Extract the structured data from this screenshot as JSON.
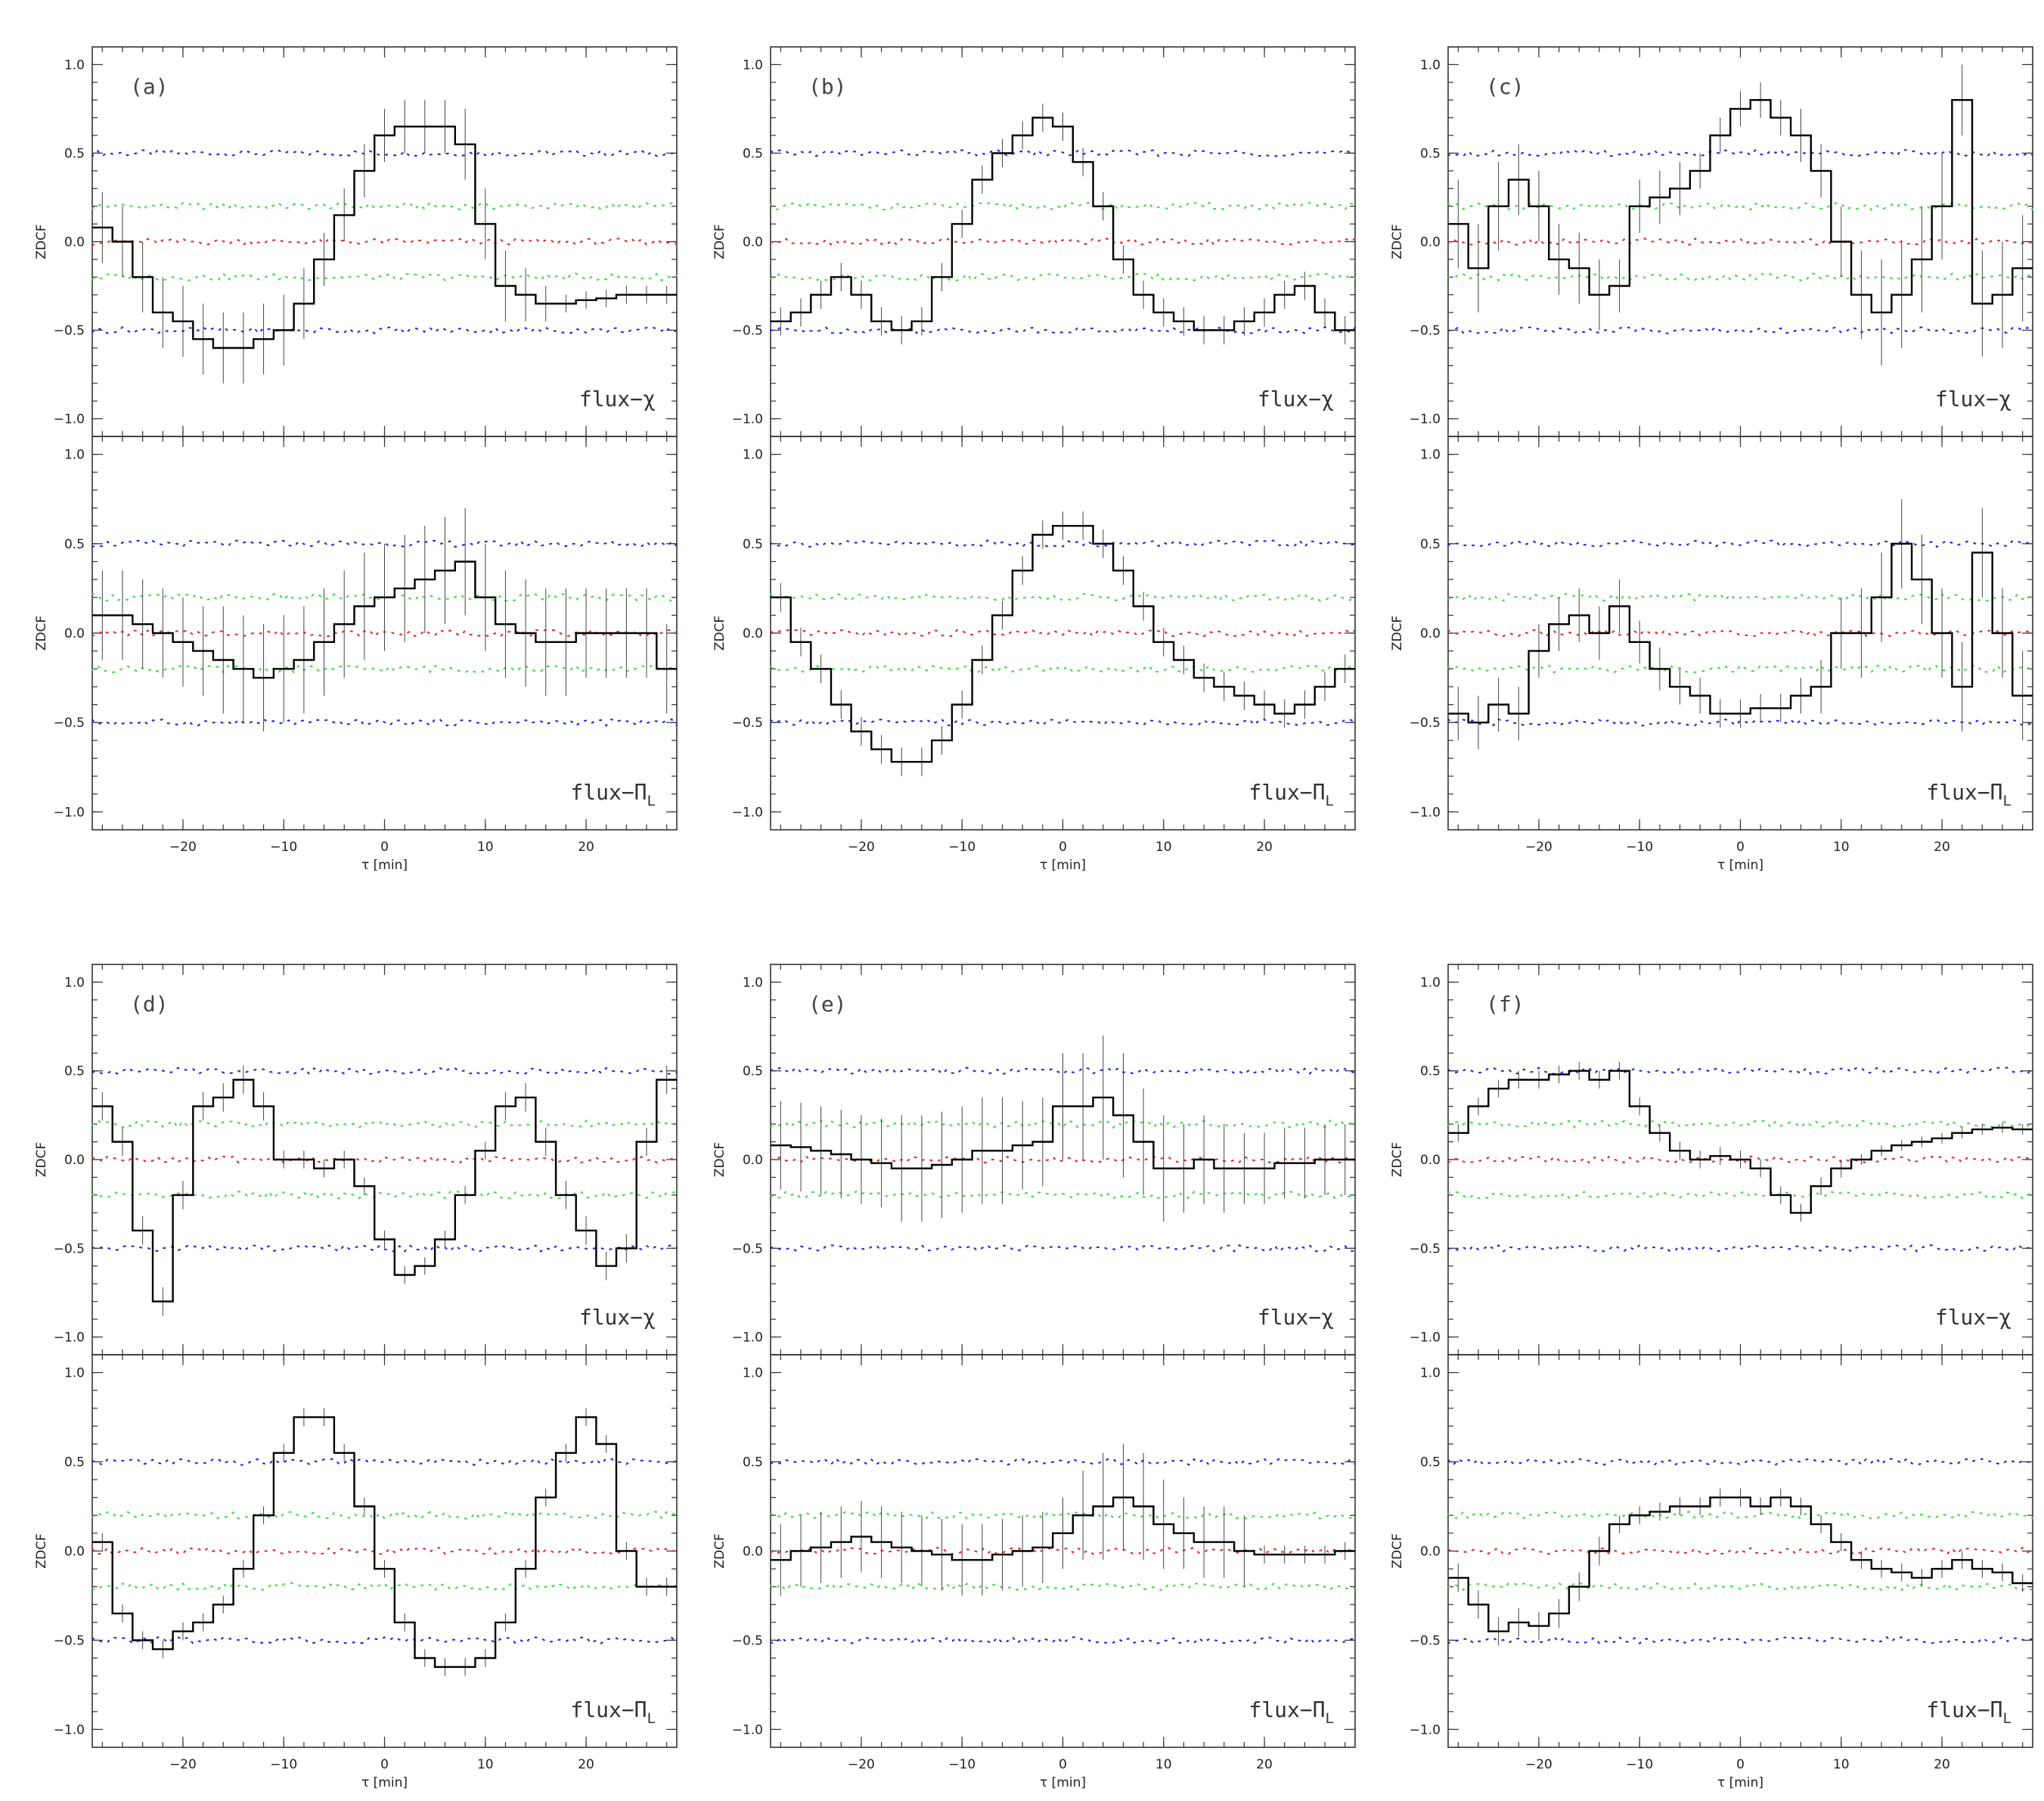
{
  "colors": {
    "line": "#000000",
    "err": "#444444",
    "zero": "#e03030",
    "sig1": "#44dd44",
    "sig2": "#2b2bd8"
  },
  "common": {
    "ylabel": "ZDCF",
    "xlabel": "τ [min]",
    "xlim": [
      -29,
      29
    ],
    "ylim": [
      -1.1,
      1.1
    ],
    "xticks": [
      -20,
      -10,
      0,
      10,
      20
    ],
    "yticks": [
      -1.0,
      -0.5,
      0.0,
      0.5,
      1.0
    ],
    "ytick_labels": [
      "−1.0",
      "−0.5",
      "0.0",
      "0.5",
      "1.0"
    ],
    "xtick_labels": [
      "−20",
      "−10",
      "0",
      "10",
      "20"
    ],
    "ref_levels": {
      "zero": 0.0,
      "sig1": [
        0.2,
        -0.2
      ],
      "sig2": [
        0.5,
        -0.5
      ]
    }
  },
  "chart_data": [
    {
      "type": "line",
      "panel": "(a)",
      "top": {
        "label": "flux−χ",
        "x": [
          -28,
          -26,
          -24,
          -22,
          -20,
          -18,
          -16,
          -14,
          -12,
          -10,
          -8,
          -6,
          -4,
          -2,
          0,
          2,
          4,
          6,
          8,
          10,
          12,
          14,
          16,
          18,
          20,
          22,
          24,
          26,
          28
        ],
        "y": [
          0.08,
          0.0,
          -0.2,
          -0.4,
          -0.45,
          -0.55,
          -0.6,
          -0.6,
          -0.55,
          -0.5,
          -0.35,
          -0.1,
          0.15,
          0.4,
          0.6,
          0.65,
          0.65,
          0.65,
          0.55,
          0.1,
          -0.25,
          -0.3,
          -0.35,
          -0.35,
          -0.33,
          -0.32,
          -0.3,
          -0.3,
          -0.3
        ],
        "err": [
          0.2,
          0.2,
          0.2,
          0.2,
          0.2,
          0.2,
          0.2,
          0.2,
          0.2,
          0.2,
          0.2,
          0.15,
          0.15,
          0.15,
          0.15,
          0.15,
          0.15,
          0.15,
          0.2,
          0.2,
          0.2,
          0.15,
          0.1,
          0.05,
          0.05,
          0.05,
          0.05,
          0.05,
          0.05
        ]
      },
      "bottom": {
        "label": "flux−Π",
        "x": [
          -28,
          -26,
          -24,
          -22,
          -20,
          -18,
          -16,
          -14,
          -12,
          -10,
          -8,
          -6,
          -4,
          -2,
          0,
          2,
          4,
          6,
          8,
          10,
          12,
          14,
          16,
          18,
          20,
          22,
          24,
          26,
          28
        ],
        "y": [
          0.1,
          0.1,
          0.05,
          0.0,
          -0.05,
          -0.1,
          -0.15,
          -0.2,
          -0.25,
          -0.2,
          -0.15,
          -0.05,
          0.05,
          0.15,
          0.2,
          0.25,
          0.3,
          0.35,
          0.4,
          0.2,
          0.05,
          0.0,
          -0.05,
          -0.05,
          0.0,
          0.0,
          0.0,
          0.0,
          -0.2
        ],
        "err": [
          0.25,
          0.25,
          0.25,
          0.25,
          0.25,
          0.25,
          0.3,
          0.3,
          0.3,
          0.3,
          0.3,
          0.3,
          0.3,
          0.3,
          0.3,
          0.3,
          0.3,
          0.3,
          0.3,
          0.3,
          0.3,
          0.3,
          0.3,
          0.3,
          0.25,
          0.25,
          0.25,
          0.25,
          0.25
        ]
      }
    },
    {
      "type": "line",
      "panel": "(b)",
      "top": {
        "label": "flux−χ",
        "x": [
          -28,
          -26,
          -24,
          -22,
          -20,
          -18,
          -16,
          -14,
          -12,
          -10,
          -8,
          -6,
          -4,
          -2,
          0,
          2,
          4,
          6,
          8,
          10,
          12,
          14,
          16,
          18,
          20,
          22,
          24,
          26,
          28
        ],
        "y": [
          -0.45,
          -0.4,
          -0.3,
          -0.2,
          -0.3,
          -0.45,
          -0.5,
          -0.45,
          -0.2,
          0.1,
          0.35,
          0.5,
          0.6,
          0.7,
          0.65,
          0.45,
          0.2,
          -0.1,
          -0.3,
          -0.4,
          -0.45,
          -0.5,
          -0.5,
          -0.45,
          -0.4,
          -0.3,
          -0.25,
          -0.4,
          -0.5
        ],
        "err": [
          0.08,
          0.08,
          0.08,
          0.08,
          0.08,
          0.08,
          0.08,
          0.08,
          0.08,
          0.08,
          0.08,
          0.08,
          0.08,
          0.08,
          0.08,
          0.08,
          0.08,
          0.08,
          0.08,
          0.08,
          0.08,
          0.08,
          0.08,
          0.08,
          0.08,
          0.08,
          0.08,
          0.08,
          0.08
        ]
      },
      "bottom": {
        "label": "flux−Π",
        "x": [
          -28,
          -26,
          -24,
          -22,
          -20,
          -18,
          -16,
          -14,
          -12,
          -10,
          -8,
          -6,
          -4,
          -2,
          0,
          2,
          4,
          6,
          8,
          10,
          12,
          14,
          16,
          18,
          20,
          22,
          24,
          26,
          28
        ],
        "y": [
          0.2,
          -0.05,
          -0.2,
          -0.4,
          -0.55,
          -0.65,
          -0.72,
          -0.72,
          -0.6,
          -0.4,
          -0.15,
          0.1,
          0.35,
          0.55,
          0.6,
          0.6,
          0.5,
          0.35,
          0.15,
          -0.05,
          -0.15,
          -0.25,
          -0.3,
          -0.35,
          -0.4,
          -0.45,
          -0.4,
          -0.3,
          -0.2
        ],
        "err": [
          0.08,
          0.08,
          0.08,
          0.08,
          0.08,
          0.08,
          0.08,
          0.08,
          0.08,
          0.08,
          0.08,
          0.08,
          0.08,
          0.08,
          0.08,
          0.08,
          0.08,
          0.08,
          0.08,
          0.08,
          0.08,
          0.08,
          0.08,
          0.08,
          0.08,
          0.08,
          0.08,
          0.08,
          0.08
        ]
      }
    },
    {
      "type": "line",
      "panel": "(c)",
      "top": {
        "label": "flux−χ",
        "x": [
          -28,
          -26,
          -24,
          -22,
          -20,
          -18,
          -16,
          -14,
          -12,
          -10,
          -8,
          -6,
          -4,
          -2,
          0,
          2,
          4,
          6,
          8,
          10,
          12,
          14,
          16,
          18,
          20,
          22,
          24,
          26,
          28
        ],
        "y": [
          0.1,
          -0.15,
          0.2,
          0.35,
          0.2,
          -0.1,
          -0.15,
          -0.3,
          -0.25,
          0.2,
          0.25,
          0.3,
          0.4,
          0.6,
          0.75,
          0.8,
          0.7,
          0.6,
          0.4,
          0.0,
          -0.3,
          -0.4,
          -0.3,
          -0.1,
          0.2,
          0.8,
          -0.35,
          -0.3,
          -0.15
        ],
        "err": [
          0.25,
          0.25,
          0.25,
          0.2,
          0.2,
          0.2,
          0.2,
          0.2,
          0.15,
          0.15,
          0.15,
          0.15,
          0.1,
          0.1,
          0.1,
          0.1,
          0.1,
          0.15,
          0.15,
          0.2,
          0.25,
          0.3,
          0.3,
          0.3,
          0.3,
          0.2,
          0.3,
          0.3,
          0.3
        ]
      },
      "bottom": {
        "label": "flux−Π",
        "x": [
          -28,
          -26,
          -24,
          -22,
          -20,
          -18,
          -16,
          -14,
          -12,
          -10,
          -8,
          -6,
          -4,
          -2,
          0,
          2,
          4,
          6,
          8,
          10,
          12,
          14,
          16,
          18,
          20,
          22,
          24,
          26,
          28
        ],
        "y": [
          -0.45,
          -0.5,
          -0.4,
          -0.45,
          -0.1,
          0.05,
          0.1,
          0.0,
          0.15,
          -0.05,
          -0.2,
          -0.3,
          -0.35,
          -0.45,
          -0.45,
          -0.42,
          -0.42,
          -0.35,
          -0.3,
          0.0,
          0.0,
          0.2,
          0.5,
          0.3,
          0.0,
          -0.3,
          0.45,
          0.0,
          -0.35
        ],
        "err": [
          0.15,
          0.15,
          0.15,
          0.15,
          0.15,
          0.15,
          0.15,
          0.15,
          0.15,
          0.12,
          0.12,
          0.1,
          0.1,
          0.08,
          0.08,
          0.08,
          0.08,
          0.1,
          0.15,
          0.2,
          0.25,
          0.25,
          0.25,
          0.25,
          0.25,
          0.25,
          0.25,
          0.25,
          0.25
        ]
      }
    },
    {
      "type": "line",
      "panel": "(d)",
      "top": {
        "label": "flux−χ",
        "x": [
          -28,
          -26,
          -24,
          -22,
          -20,
          -18,
          -16,
          -14,
          -12,
          -10,
          -8,
          -6,
          -4,
          -2,
          0,
          2,
          4,
          6,
          8,
          10,
          12,
          14,
          16,
          18,
          20,
          22,
          24,
          26,
          28
        ],
        "y": [
          0.3,
          0.1,
          -0.4,
          -0.8,
          -0.2,
          0.3,
          0.35,
          0.45,
          0.3,
          0.0,
          0.0,
          -0.05,
          0.0,
          -0.15,
          -0.45,
          -0.65,
          -0.6,
          -0.45,
          -0.2,
          0.05,
          0.3,
          0.35,
          0.1,
          -0.2,
          -0.4,
          -0.6,
          -0.5,
          0.1,
          0.45
        ],
        "err": [
          0.08,
          0.08,
          0.08,
          0.08,
          0.08,
          0.08,
          0.08,
          0.08,
          0.08,
          0.05,
          0.05,
          0.05,
          0.05,
          0.05,
          0.05,
          0.05,
          0.05,
          0.05,
          0.05,
          0.05,
          0.08,
          0.08,
          0.08,
          0.08,
          0.08,
          0.08,
          0.08,
          0.08,
          0.08
        ]
      },
      "bottom": {
        "label": "flux−Π",
        "x": [
          -28,
          -26,
          -24,
          -22,
          -20,
          -18,
          -16,
          -14,
          -12,
          -10,
          -8,
          -6,
          -4,
          -2,
          0,
          2,
          4,
          6,
          8,
          10,
          12,
          14,
          16,
          18,
          20,
          22,
          24,
          26,
          28
        ],
        "y": [
          0.05,
          -0.35,
          -0.5,
          -0.55,
          -0.45,
          -0.4,
          -0.3,
          -0.1,
          0.2,
          0.55,
          0.75,
          0.75,
          0.55,
          0.25,
          -0.1,
          -0.4,
          -0.6,
          -0.65,
          -0.65,
          -0.6,
          -0.4,
          -0.1,
          0.3,
          0.55,
          0.75,
          0.6,
          0.0,
          -0.2,
          -0.2
        ],
        "err": [
          0.05,
          0.05,
          0.05,
          0.05,
          0.05,
          0.05,
          0.05,
          0.05,
          0.05,
          0.05,
          0.05,
          0.05,
          0.05,
          0.05,
          0.05,
          0.05,
          0.05,
          0.05,
          0.05,
          0.05,
          0.05,
          0.05,
          0.05,
          0.05,
          0.05,
          0.05,
          0.05,
          0.05,
          0.05
        ]
      }
    },
    {
      "type": "line",
      "panel": "(e)",
      "top": {
        "label": "flux−χ",
        "x": [
          -28,
          -26,
          -24,
          -22,
          -20,
          -18,
          -16,
          -14,
          -12,
          -10,
          -8,
          -6,
          -4,
          -2,
          0,
          2,
          4,
          6,
          8,
          10,
          12,
          14,
          16,
          18,
          20,
          22,
          24,
          26,
          28
        ],
        "y": [
          0.08,
          0.07,
          0.05,
          0.03,
          0.0,
          -0.02,
          -0.05,
          -0.05,
          -0.03,
          0.0,
          0.05,
          0.05,
          0.08,
          0.1,
          0.3,
          0.3,
          0.35,
          0.25,
          0.1,
          -0.05,
          -0.05,
          0.0,
          -0.05,
          -0.05,
          -0.05,
          -0.02,
          -0.02,
          0.0,
          0.0
        ],
        "err": [
          0.25,
          0.25,
          0.25,
          0.25,
          0.25,
          0.25,
          0.3,
          0.3,
          0.3,
          0.3,
          0.3,
          0.3,
          0.25,
          0.25,
          0.3,
          0.3,
          0.35,
          0.35,
          0.3,
          0.3,
          0.25,
          0.25,
          0.25,
          0.2,
          0.2,
          0.2,
          0.2,
          0.2,
          0.2
        ]
      },
      "bottom": {
        "label": "flux−Π",
        "x": [
          -28,
          -26,
          -24,
          -22,
          -20,
          -18,
          -16,
          -14,
          -12,
          -10,
          -8,
          -6,
          -4,
          -2,
          0,
          2,
          4,
          6,
          8,
          10,
          12,
          14,
          16,
          18,
          20,
          22,
          24,
          26,
          28
        ],
        "y": [
          -0.05,
          0.0,
          0.02,
          0.05,
          0.08,
          0.05,
          0.02,
          0.0,
          -0.02,
          -0.05,
          -0.05,
          -0.02,
          0.0,
          0.02,
          0.1,
          0.2,
          0.25,
          0.3,
          0.25,
          0.15,
          0.1,
          0.05,
          0.05,
          0.0,
          -0.02,
          -0.02,
          -0.02,
          -0.02,
          0.0
        ],
        "err": [
          0.2,
          0.2,
          0.2,
          0.2,
          0.2,
          0.2,
          0.2,
          0.2,
          0.2,
          0.2,
          0.2,
          0.2,
          0.2,
          0.2,
          0.2,
          0.25,
          0.3,
          0.3,
          0.3,
          0.25,
          0.2,
          0.2,
          0.2,
          0.2,
          0.05,
          0.05,
          0.05,
          0.05,
          0.05
        ]
      }
    },
    {
      "type": "line",
      "panel": "(f)",
      "top": {
        "label": "flux−χ",
        "x": [
          -28,
          -26,
          -24,
          -22,
          -20,
          -18,
          -16,
          -14,
          -12,
          -10,
          -8,
          -6,
          -4,
          -2,
          0,
          2,
          4,
          6,
          8,
          10,
          12,
          14,
          16,
          18,
          20,
          22,
          24,
          26,
          28
        ],
        "y": [
          0.15,
          0.3,
          0.4,
          0.45,
          0.45,
          0.48,
          0.5,
          0.45,
          0.5,
          0.3,
          0.15,
          0.05,
          0.0,
          0.02,
          0.0,
          -0.05,
          -0.2,
          -0.3,
          -0.15,
          -0.05,
          0.0,
          0.05,
          0.08,
          0.1,
          0.12,
          0.15,
          0.17,
          0.18,
          0.17
        ],
        "err": [
          0.05,
          0.05,
          0.05,
          0.05,
          0.05,
          0.05,
          0.05,
          0.05,
          0.05,
          0.05,
          0.05,
          0.05,
          0.05,
          0.05,
          0.05,
          0.05,
          0.05,
          0.05,
          0.05,
          0.05,
          0.03,
          0.03,
          0.03,
          0.03,
          0.03,
          0.03,
          0.03,
          0.03,
          0.03
        ]
      },
      "bottom": {
        "label": "flux−Π",
        "x": [
          -28,
          -26,
          -24,
          -22,
          -20,
          -18,
          -16,
          -14,
          -12,
          -10,
          -8,
          -6,
          -4,
          -2,
          0,
          2,
          4,
          6,
          8,
          10,
          12,
          14,
          16,
          18,
          20,
          22,
          24,
          26,
          28
        ],
        "y": [
          -0.15,
          -0.3,
          -0.45,
          -0.4,
          -0.42,
          -0.35,
          -0.2,
          0.0,
          0.15,
          0.2,
          0.22,
          0.25,
          0.25,
          0.3,
          0.3,
          0.25,
          0.3,
          0.25,
          0.15,
          0.05,
          -0.05,
          -0.1,
          -0.12,
          -0.15,
          -0.1,
          -0.05,
          -0.1,
          -0.12,
          -0.18
        ],
        "err": [
          0.08,
          0.08,
          0.08,
          0.08,
          0.08,
          0.08,
          0.08,
          0.08,
          0.05,
          0.05,
          0.05,
          0.05,
          0.05,
          0.05,
          0.05,
          0.05,
          0.05,
          0.05,
          0.05,
          0.05,
          0.05,
          0.05,
          0.05,
          0.05,
          0.05,
          0.05,
          0.05,
          0.05,
          0.05
        ]
      }
    }
  ]
}
